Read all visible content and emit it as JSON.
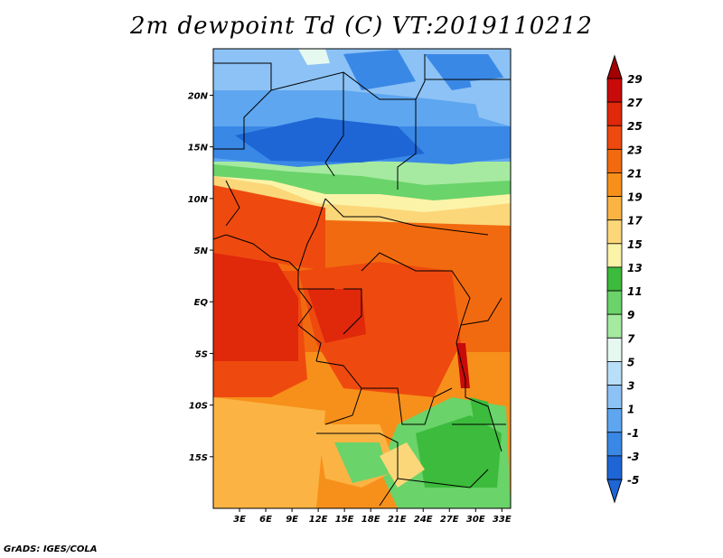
{
  "title": "2m dewpoint Td (C) VT:2019110212",
  "footer": "GrADS: IGES/COLA",
  "map": {
    "lat_range": [
      -20,
      24.5
    ],
    "lon_range": [
      0,
      34
    ],
    "lat_ticks": [
      {
        "value": 20,
        "label": "20N"
      },
      {
        "value": 15,
        "label": "15N"
      },
      {
        "value": 10,
        "label": "10N"
      },
      {
        "value": 5,
        "label": "5N"
      },
      {
        "value": 0,
        "label": "EQ"
      },
      {
        "value": -5,
        "label": "5S"
      },
      {
        "value": -10,
        "label": "10S"
      },
      {
        "value": -15,
        "label": "15S"
      }
    ],
    "lon_ticks": [
      {
        "value": 3,
        "label": "3E"
      },
      {
        "value": 6,
        "label": "6E"
      },
      {
        "value": 9,
        "label": "9E"
      },
      {
        "value": 12,
        "label": "12E"
      },
      {
        "value": 15,
        "label": "15E"
      },
      {
        "value": 18,
        "label": "18E"
      },
      {
        "value": 21,
        "label": "21E"
      },
      {
        "value": 24,
        "label": "24E"
      },
      {
        "value": 27,
        "label": "27E"
      },
      {
        "value": 30,
        "label": "30E"
      },
      {
        "value": 33,
        "label": "33E"
      }
    ]
  },
  "colorbar": {
    "levels": [
      {
        "label": "29",
        "color": "#a50000"
      },
      {
        "label": "27",
        "color": "#c80a0a"
      },
      {
        "label": "25",
        "color": "#e0280a"
      },
      {
        "label": "23",
        "color": "#ee4a0f"
      },
      {
        "label": "21",
        "color": "#f26a10"
      },
      {
        "label": "19",
        "color": "#f7901a"
      },
      {
        "label": "17",
        "color": "#fbb444"
      },
      {
        "label": "15",
        "color": "#fcd77a"
      },
      {
        "label": "13",
        "color": "#fbf3a8"
      },
      {
        "label": "11",
        "color": "#3cbb3c"
      },
      {
        "label": "9",
        "color": "#6ad36a"
      },
      {
        "label": "7",
        "color": "#a5eaa0"
      },
      {
        "label": "5",
        "color": "#e6f9f0"
      },
      {
        "label": "3",
        "color": "#b8def8"
      },
      {
        "label": "1",
        "color": "#8cc2f5"
      },
      {
        "label": "-1",
        "color": "#5ea6f0"
      },
      {
        "label": "-3",
        "color": "#3a88e6"
      },
      {
        "label": "-5",
        "color": "#1e66d6"
      }
    ],
    "top_color": "#a50000",
    "bottom_color": "#1e66d6"
  }
}
